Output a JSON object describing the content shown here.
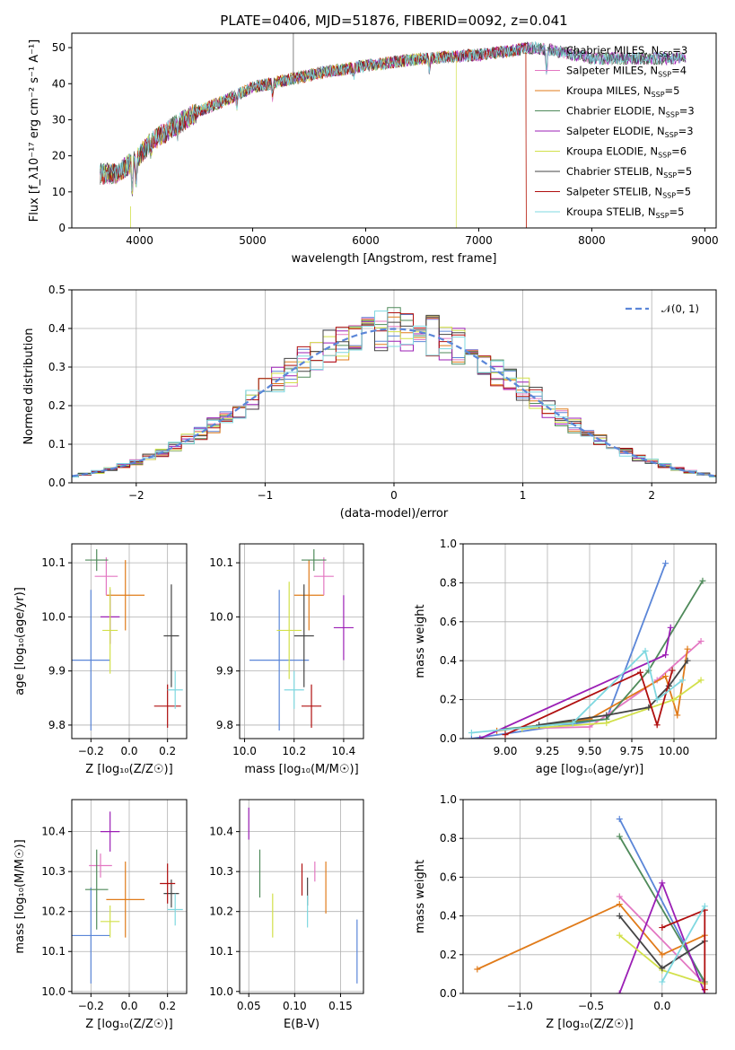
{
  "colors": {
    "Chabrier MILES": "#888888",
    "Salpeter MILES": "#e377c2",
    "Kroupa MILES": "#e07b1a",
    "Chabrier ELODIE": "#4f8a5a",
    "Salpeter ELODIE": "#9b1fb5",
    "Kroupa ELODIE": "#d2e04a",
    "Chabrier STELIB": "#444444",
    "Salpeter STELIB": "#b01010",
    "Kroupa STELIB": "#7fd8e0",
    "MILES-blue": "#5b86d8"
  },
  "chart_data": [
    {
      "id": "spectrum",
      "type": "line",
      "title": "PLATE=0406, MJD=51876, FIBERID=0092, z=0.041",
      "xlabel": "wavelength [Angstrom, rest frame]",
      "ylabel": "Flux [f_λ10⁻¹⁷ erg cm⁻² s⁻¹ A⁻¹]",
      "xlim": [
        3400,
        9100
      ],
      "ylim": [
        0,
        54
      ],
      "xticks": [
        4000,
        5000,
        6000,
        7000,
        8000,
        9000
      ],
      "yticks": [
        0,
        10,
        20,
        30,
        40,
        50
      ],
      "legend_position": "top-right",
      "continuum_x": [
        3650,
        3800,
        4000,
        4100,
        4300,
        4500,
        4800,
        5000,
        5300,
        5600,
        6000,
        6500,
        7000,
        7500,
        7700,
        8000,
        8400,
        8800
      ],
      "continuum_y": [
        15,
        15,
        20,
        24,
        28,
        32,
        36,
        39,
        41,
        43,
        45,
        47,
        48,
        50,
        49,
        47,
        47,
        47
      ],
      "series": [
        {
          "name": "Chabrier MILES, N",
          "sub": "SSP",
          "suffix": "=3",
          "color_key": "Chabrier MILES"
        },
        {
          "name": "Salpeter MILES, N",
          "sub": "SSP",
          "suffix": "=4",
          "color_key": "Salpeter MILES"
        },
        {
          "name": "Kroupa MILES, N",
          "sub": "SSP",
          "suffix": "=5",
          "color_key": "Kroupa MILES",
          "cutoff_x": 7420
        },
        {
          "name": "Chabrier ELODIE, N",
          "sub": "SSP",
          "suffix": "=3",
          "color_key": "Chabrier ELODIE"
        },
        {
          "name": "Salpeter ELODIE, N",
          "sub": "SSP",
          "suffix": "=3",
          "color_key": "Salpeter ELODIE"
        },
        {
          "name": "Kroupa ELODIE, N",
          "sub": "SSP",
          "suffix": "=6",
          "color_key": "Kroupa ELODIE",
          "cutoff_x": 6800
        },
        {
          "name": "Chabrier STELIB, N",
          "sub": "SSP",
          "suffix": "=5",
          "color_key": "Chabrier STELIB"
        },
        {
          "name": "Salpeter STELIB, N",
          "sub": "SSP",
          "suffix": "=5",
          "color_key": "Salpeter STELIB",
          "cutoff_x": 7420
        },
        {
          "name": "Kroupa STELIB, N",
          "sub": "SSP",
          "suffix": "=5",
          "color_key": "Kroupa STELIB"
        }
      ]
    },
    {
      "id": "residuals",
      "type": "line",
      "xlabel": "(data-model)/error",
      "ylabel": "Normed distribution",
      "xlim": [
        -2.5,
        2.5
      ],
      "ylim": [
        0,
        0.5
      ],
      "xticks": [
        -2,
        -1,
        0,
        1,
        2
      ],
      "yticks": [
        0.0,
        0.1,
        0.2,
        0.3,
        0.4,
        0.5
      ],
      "grid": true,
      "legend_position": "top-right",
      "legend": "𝒩(0, 1)",
      "bin_width": 0.1,
      "colors": [
        "MILES-blue",
        "Salpeter MILES",
        "Kroupa MILES",
        "Chabrier ELODIE",
        "Salpeter ELODIE",
        "Kroupa ELODIE",
        "Chabrier STELIB",
        "Salpeter STELIB",
        "Kroupa STELIB"
      ]
    },
    {
      "id": "age-vs-Z",
      "type": "scatter",
      "xlabel": "Z [log₁₀(Z/Z☉)]",
      "ylabel": "age  [log₁₀(age/yr)]",
      "xlim": [
        -0.3,
        0.3
      ],
      "ylim": [
        9.775,
        10.135
      ],
      "xticks": [
        -0.2,
        0.0,
        0.2
      ],
      "yticks": [
        9.8,
        9.9,
        10.0,
        10.1
      ],
      "grid": true,
      "points": [
        {
          "c": "MILES-blue",
          "x": -0.2,
          "y": 9.92,
          "xe": 0.1,
          "ye": 0.13
        },
        {
          "c": "Kroupa MILES",
          "x": -0.02,
          "y": 10.04,
          "xe": 0.1,
          "ye": 0.065
        },
        {
          "c": "Salpeter MILES",
          "x": -0.12,
          "y": 10.075,
          "xe": 0.06,
          "ye": 0.035
        },
        {
          "c": "Chabrier ELODIE",
          "x": -0.17,
          "y": 10.105,
          "xe": 0.06,
          "ye": 0.02
        },
        {
          "c": "Salpeter ELODIE",
          "x": -0.1,
          "y": 10.0,
          "xe": 0.05,
          "ye": 0.05
        },
        {
          "c": "Kroupa ELODIE",
          "x": -0.1,
          "y": 9.975,
          "xe": 0.04,
          "ye": 0.08
        },
        {
          "c": "Chabrier STELIB",
          "x": 0.22,
          "y": 9.965,
          "xe": 0.04,
          "ye": 0.095
        },
        {
          "c": "Salpeter STELIB",
          "x": 0.2,
          "y": 9.835,
          "xe": 0.07,
          "ye": 0.04
        },
        {
          "c": "Kroupa STELIB",
          "x": 0.24,
          "y": 9.865,
          "xe": 0.04,
          "ye": 0.035
        }
      ]
    },
    {
      "id": "age-vs-mass",
      "type": "scatter",
      "xlabel": "mass [log₁₀(M/M☉)]",
      "xlim": [
        9.98,
        10.48
      ],
      "ylim": [
        9.775,
        10.135
      ],
      "xticks": [
        10.0,
        10.2,
        10.4
      ],
      "yticks": [
        9.8,
        9.9,
        10.0,
        10.1
      ],
      "grid": true,
      "points": [
        {
          "c": "MILES-blue",
          "x": 10.14,
          "y": 9.92,
          "xe": 0.12,
          "ye": 0.13
        },
        {
          "c": "Kroupa MILES",
          "x": 10.26,
          "y": 10.04,
          "xe": 0.06,
          "ye": 0.065
        },
        {
          "c": "Salpeter MILES",
          "x": 10.32,
          "y": 10.075,
          "xe": 0.04,
          "ye": 0.035
        },
        {
          "c": "Chabrier ELODIE",
          "x": 10.28,
          "y": 10.105,
          "xe": 0.05,
          "ye": 0.02
        },
        {
          "c": "Salpeter ELODIE",
          "x": 10.4,
          "y": 9.98,
          "xe": 0.04,
          "ye": 0.06
        },
        {
          "c": "Kroupa ELODIE",
          "x": 10.18,
          "y": 9.975,
          "xe": 0.05,
          "ye": 0.09
        },
        {
          "c": "Chabrier STELIB",
          "x": 10.24,
          "y": 9.965,
          "xe": 0.04,
          "ye": 0.095
        },
        {
          "c": "Salpeter STELIB",
          "x": 10.27,
          "y": 9.835,
          "xe": 0.04,
          "ye": 0.04
        },
        {
          "c": "Kroupa STELIB",
          "x": 10.2,
          "y": 9.865,
          "xe": 0.04,
          "ye": 0.035
        }
      ]
    },
    {
      "id": "massweight-vs-age",
      "type": "line",
      "xlabel": "age  [log₁₀(age/yr)]",
      "ylabel": "mass weight",
      "xlim": [
        8.75,
        10.25
      ],
      "ylim": [
        0,
        1
      ],
      "xticks": [
        9.0,
        9.25,
        9.5,
        9.75,
        10.0
      ],
      "yticks": [
        0.0,
        0.2,
        0.4,
        0.6,
        0.8,
        1.0
      ],
      "grid": true,
      "series": [
        {
          "c": "MILES-blue",
          "x": [
            8.8,
            9.6,
            9.95
          ],
          "y": [
            0.0,
            0.1,
            0.9
          ]
        },
        {
          "c": "Salpeter MILES",
          "x": [
            9.0,
            9.5,
            9.9,
            10.16
          ],
          "y": [
            0.05,
            0.06,
            0.3,
            0.5
          ]
        },
        {
          "c": "Kroupa MILES",
          "x": [
            8.95,
            9.5,
            9.95,
            10.02,
            10.08
          ],
          "y": [
            0.04,
            0.1,
            0.32,
            0.12,
            0.46
          ]
        },
        {
          "c": "Chabrier ELODIE",
          "x": [
            9.0,
            9.6,
            9.85,
            10.17
          ],
          "y": [
            0.05,
            0.1,
            0.35,
            0.81
          ]
        },
        {
          "c": "Salpeter ELODIE",
          "x": [
            8.85,
            9.95,
            9.98
          ],
          "y": [
            0.0,
            0.43,
            0.57
          ]
        },
        {
          "c": "Kroupa ELODIE",
          "x": [
            9.1,
            9.6,
            10.0,
            10.16
          ],
          "y": [
            0.05,
            0.08,
            0.2,
            0.3
          ]
        },
        {
          "c": "Chabrier STELIB",
          "x": [
            9.2,
            9.6,
            9.85,
            9.97,
            10.08
          ],
          "y": [
            0.07,
            0.12,
            0.16,
            0.27,
            0.4
          ]
        },
        {
          "c": "Salpeter STELIB",
          "x": [
            9.0,
            9.8,
            9.9,
            9.99
          ],
          "y": [
            0.02,
            0.34,
            0.07,
            0.35
          ]
        },
        {
          "c": "Kroupa STELIB",
          "x": [
            8.8,
            9.4,
            9.83,
            9.9,
            10.05
          ],
          "y": [
            0.03,
            0.08,
            0.45,
            0.2,
            0.3
          ]
        }
      ]
    },
    {
      "id": "mass-vs-Z",
      "type": "scatter",
      "xlabel": "Z [log₁₀(Z/Z☉)]",
      "ylabel": "mass [log₁₀(M/M☉)]",
      "xlim": [
        -0.3,
        0.3
      ],
      "ylim": [
        9.995,
        10.48
      ],
      "xticks": [
        -0.2,
        0.0,
        0.2
      ],
      "yticks": [
        10.0,
        10.1,
        10.2,
        10.3,
        10.4
      ],
      "grid": true,
      "points": [
        {
          "c": "MILES-blue",
          "x": -0.2,
          "y": 10.14,
          "xe": 0.1,
          "ye": 0.12
        },
        {
          "c": "Kroupa MILES",
          "x": -0.02,
          "y": 10.23,
          "xe": 0.1,
          "ye": 0.095
        },
        {
          "c": "Salpeter MILES",
          "x": -0.15,
          "y": 10.315,
          "xe": 0.06,
          "ye": 0.03
        },
        {
          "c": "Chabrier ELODIE",
          "x": -0.17,
          "y": 10.255,
          "xe": 0.06,
          "ye": 0.1
        },
        {
          "c": "Salpeter ELODIE",
          "x": -0.1,
          "y": 10.4,
          "xe": 0.05,
          "ye": 0.05
        },
        {
          "c": "Kroupa ELODIE",
          "x": -0.1,
          "y": 10.175,
          "xe": 0.05,
          "ye": 0.04
        },
        {
          "c": "Chabrier STELIB",
          "x": 0.22,
          "y": 10.245,
          "xe": 0.04,
          "ye": 0.035
        },
        {
          "c": "Salpeter STELIB",
          "x": 0.2,
          "y": 10.27,
          "xe": 0.04,
          "ye": 0.05
        },
        {
          "c": "Kroupa STELIB",
          "x": 0.24,
          "y": 10.205,
          "xe": 0.04,
          "ye": 0.04
        }
      ]
    },
    {
      "id": "mass-vs-EBV",
      "type": "scatter",
      "xlabel": "E(B-V)",
      "xlim": [
        0.04,
        0.175
      ],
      "ylim": [
        9.995,
        10.48
      ],
      "xticks": [
        0.05,
        0.1,
        0.15
      ],
      "yticks": [
        10.0,
        10.1,
        10.2,
        10.3,
        10.4
      ],
      "grid": true,
      "points": [
        {
          "c": "MILES-blue",
          "x": 0.168,
          "y": 10.1,
          "xe": 0,
          "ye": 0.08
        },
        {
          "c": "Kroupa MILES",
          "x": 0.134,
          "y": 10.26,
          "xe": 0,
          "ye": 0.065
        },
        {
          "c": "Salpeter MILES",
          "x": 0.122,
          "y": 10.3,
          "xe": 0,
          "ye": 0.025
        },
        {
          "c": "Chabrier ELODIE",
          "x": 0.062,
          "y": 10.295,
          "xe": 0,
          "ye": 0.06
        },
        {
          "c": "Salpeter ELODIE",
          "x": 0.05,
          "y": 10.42,
          "xe": 0,
          "ye": 0.04
        },
        {
          "c": "Kroupa ELODIE",
          "x": 0.076,
          "y": 10.19,
          "xe": 0,
          "ye": 0.055
        },
        {
          "c": "Chabrier STELIB",
          "x": 0.114,
          "y": 10.25,
          "xe": 0,
          "ye": 0.035
        },
        {
          "c": "Salpeter STELIB",
          "x": 0.108,
          "y": 10.28,
          "xe": 0,
          "ye": 0.04
        },
        {
          "c": "Kroupa STELIB",
          "x": 0.114,
          "y": 10.2,
          "xe": 0,
          "ye": 0.04
        }
      ]
    },
    {
      "id": "massweight-vs-Z",
      "type": "line",
      "xlabel": "Z [log₁₀(Z/Z☉)]",
      "ylabel": "mass weight",
      "xlim": [
        -1.4,
        0.38
      ],
      "ylim": [
        0,
        1
      ],
      "xticks": [
        -1.0,
        -0.5,
        0.0
      ],
      "yticks": [
        0.0,
        0.2,
        0.4,
        0.6,
        0.8,
        1.0
      ],
      "grid": true,
      "series": [
        {
          "c": "MILES-blue",
          "x": [
            -0.3,
            0.3
          ],
          "y": [
            0.9,
            0.05
          ]
        },
        {
          "c": "Salpeter MILES",
          "x": [
            -0.3,
            0.3
          ],
          "y": [
            0.5,
            0.05
          ]
        },
        {
          "c": "Kroupa MILES",
          "x": [
            -1.3,
            -0.3,
            0.0,
            0.3
          ],
          "y": [
            0.125,
            0.46,
            0.2,
            0.3
          ]
        },
        {
          "c": "Chabrier ELODIE",
          "x": [
            -0.3,
            0.3
          ],
          "y": [
            0.81,
            0.06
          ]
        },
        {
          "c": "Salpeter ELODIE",
          "x": [
            -0.3,
            0.0,
            0.3
          ],
          "y": [
            0.0,
            0.57,
            0.0
          ]
        },
        {
          "c": "Kroupa ELODIE",
          "x": [
            -0.3,
            0.0,
            0.3
          ],
          "y": [
            0.3,
            0.12,
            0.05
          ]
        },
        {
          "c": "Chabrier STELIB",
          "x": [
            -0.3,
            0.0,
            0.3
          ],
          "y": [
            0.4,
            0.13,
            0.27
          ]
        },
        {
          "c": "Salpeter STELIB",
          "x": [
            0.0,
            0.3,
            0.3
          ],
          "y": [
            0.34,
            0.43,
            0.02
          ]
        },
        {
          "c": "Kroupa STELIB",
          "x": [
            0.0,
            0.3
          ],
          "y": [
            0.06,
            0.45
          ]
        }
      ]
    }
  ]
}
